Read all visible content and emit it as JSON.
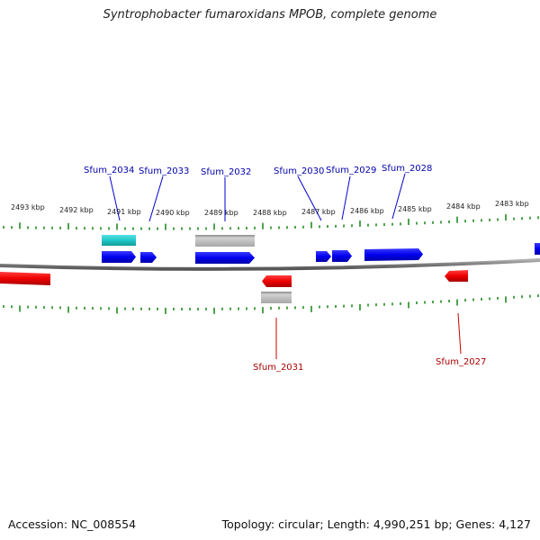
{
  "title": "Syntrophobacter fumaroxidans MPOB, complete genome",
  "accession": "Accession: NC_008554",
  "topology": "Topology: circular; Length: 4,990,251 bp; Genes: 4,127",
  "colors": {
    "forward_gene": "#0000ee",
    "reverse_gene": "#ee0000",
    "cds_cyan": "#22cccc",
    "cds_grey": "#b8b8b8",
    "tick": "#228b22",
    "forward_label": "#0000aa",
    "reverse_label": "#aa0000",
    "backbone": "#8a8a8a"
  },
  "kbp_labels": [
    "2493 kbp",
    "2492 kbp",
    "2491 kbp",
    "2490 kbp",
    "2489 kbp",
    "2488 kbp",
    "2487 kbp",
    "2486 kbp",
    "2485 kbp",
    "2484 kbp",
    "2483 kbp"
  ],
  "forward_gene_labels": [
    "Sfum_2034",
    "Sfum_2033",
    "Sfum_2032",
    "Sfum_2030",
    "Sfum_2029",
    "Sfum_2028"
  ],
  "reverse_gene_labels": [
    "Sfum_2031",
    "Sfum_2027"
  ]
}
